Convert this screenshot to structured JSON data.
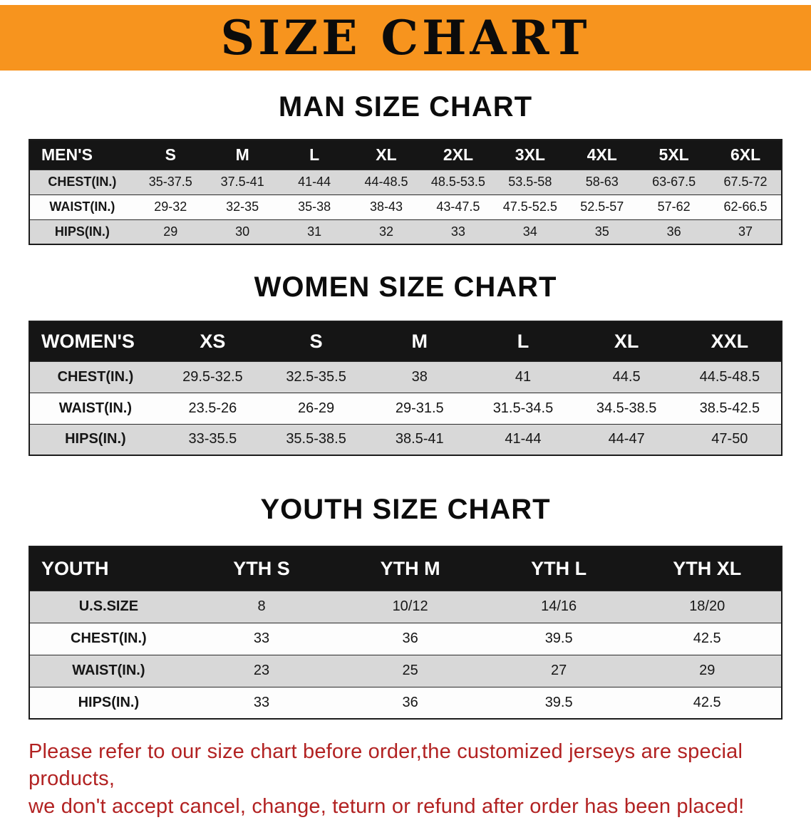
{
  "banner": {
    "title": "SIZE CHART"
  },
  "colors": {
    "banner_bg": "#F7941E",
    "header_bg": "#151515",
    "row_gray": "#D8D8D8",
    "disclaimer_red": "#B22222"
  },
  "sections": [
    {
      "heading": "MAN SIZE CHART",
      "table": {
        "header": [
          "MEN'S",
          "S",
          "M",
          "L",
          "XL",
          "2XL",
          "3XL",
          "4XL",
          "5XL",
          "6XL"
        ],
        "rows": [
          [
            "CHEST(IN.)",
            "35-37.5",
            "37.5-41",
            "41-44",
            "44-48.5",
            "48.5-53.5",
            "53.5-58",
            "58-63",
            "63-67.5",
            "67.5-72"
          ],
          [
            "WAIST(IN.)",
            "29-32",
            "32-35",
            "35-38",
            "38-43",
            "43-47.5",
            "47.5-52.5",
            "52.5-57",
            "57-62",
            "62-66.5"
          ],
          [
            "HIPS(IN.)",
            "29",
            "30",
            "31",
            "32",
            "33",
            "34",
            "35",
            "36",
            "37"
          ]
        ]
      }
    },
    {
      "heading": "WOMEN SIZE CHART",
      "table": {
        "header": [
          "WOMEN'S",
          "XS",
          "S",
          "M",
          "L",
          "XL",
          "XXL"
        ],
        "rows": [
          [
            "CHEST(IN.)",
            "29.5-32.5",
            "32.5-35.5",
            "38",
            "41",
            "44.5",
            "44.5-48.5"
          ],
          [
            "WAIST(IN.)",
            "23.5-26",
            "26-29",
            "29-31.5",
            "31.5-34.5",
            "34.5-38.5",
            "38.5-42.5"
          ],
          [
            "HIPS(IN.)",
            "33-35.5",
            "35.5-38.5",
            "38.5-41",
            "41-44",
            "44-47",
            "47-50"
          ]
        ]
      }
    },
    {
      "heading": "YOUTH SIZE CHART",
      "table": {
        "header": [
          "YOUTH",
          "YTH S",
          "YTH M",
          "YTH L",
          "YTH XL"
        ],
        "rows": [
          [
            "U.S.SIZE",
            "8",
            "10/12",
            "14/16",
            "18/20"
          ],
          [
            "CHEST(IN.)",
            "33",
            "36",
            "39.5",
            "42.5"
          ],
          [
            "WAIST(IN.)",
            "23",
            "25",
            "27",
            "29"
          ],
          [
            "HIPS(IN.)",
            "33",
            "36",
            "39.5",
            "42.5"
          ]
        ]
      }
    }
  ],
  "disclaimer": {
    "line1": "Please refer to our size chart before order,the customized jerseys are special products,",
    "line2": "we don't accept cancel, change, teturn or refund after order has been placed!"
  }
}
